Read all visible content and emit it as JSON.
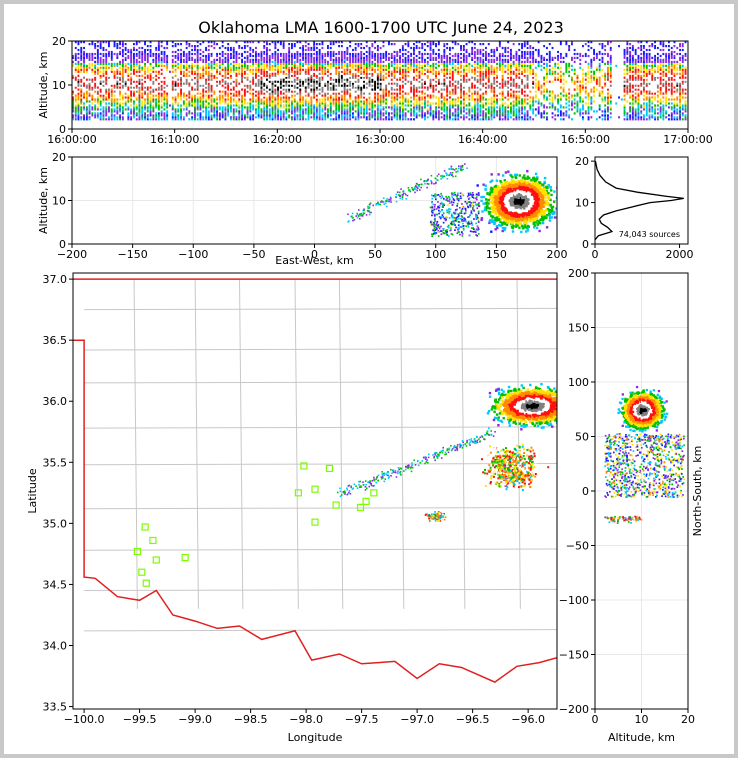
{
  "title": "Oklahoma LMA 1600-1700 UTC June 24, 2023",
  "source_count_label": "74,043 sources",
  "colors": {
    "state_border": "#e02020",
    "county_lines": "#c8c8c8",
    "station_marker": "#7cfc00",
    "density_scale": [
      "#1a1aff",
      "#8a2be2",
      "#00c8ff",
      "#00c000",
      "#ffe000",
      "#ff8c00",
      "#ff1010",
      "#ffffff",
      "#808080",
      "#000000"
    ]
  },
  "chart_data": [
    {
      "id": "time-height",
      "type": "heatmap",
      "xlabel": "",
      "ylabel": "Altitude, km",
      "xticks": [
        "16:00:00",
        "16:10:00",
        "16:20:00",
        "16:30:00",
        "16:40:00",
        "16:50:00",
        "17:00:00"
      ],
      "xlim_minutes_after_1600": [
        0,
        60
      ],
      "ylim": [
        0,
        20
      ],
      "yticks": [
        0,
        10,
        20
      ],
      "density_core_altitude_km": [
        7,
        13
      ]
    },
    {
      "id": "east-west-altitude",
      "type": "heatmap",
      "xlabel": "East-West, km",
      "ylabel": "Altitude, km",
      "xlim": [
        -200,
        200
      ],
      "xticks": [
        -200,
        -150,
        -100,
        -50,
        0,
        50,
        100,
        150,
        200
      ],
      "ylim": [
        0,
        20
      ],
      "yticks": [
        0,
        10,
        20
      ],
      "main_cell": {
        "x_center_km": 168,
        "alt_center_km": 10
      }
    },
    {
      "id": "altitude-histogram",
      "type": "line",
      "xlim": [
        0,
        2200
      ],
      "xticks": [
        0,
        2000
      ],
      "ylim": [
        0,
        21
      ],
      "yticks": [
        0,
        10,
        20
      ],
      "annotation": "74,043 sources",
      "counts_x": [
        0,
        80,
        400,
        300,
        150,
        100,
        200,
        500,
        900,
        1300,
        1800,
        2100,
        1700,
        1000,
        500,
        250,
        120,
        50,
        10
      ],
      "alt_y": [
        1,
        2,
        3,
        4,
        5,
        6,
        7,
        8,
        9,
        10,
        10.5,
        11,
        11.5,
        12.5,
        13.5,
        15,
        16.5,
        18,
        20
      ]
    },
    {
      "id": "plan-view",
      "type": "heatmap",
      "xlabel": "Longitude",
      "ylabel": "Latitude",
      "xlim": [
        -100.1,
        -95.74
      ],
      "xticks": [
        "-100.0",
        "-99.5",
        "-99.0",
        "-98.5",
        "-98.0",
        "-97.5",
        "-97.0",
        "-96.5",
        "-96.0"
      ],
      "ylim": [
        33.48,
        37.05
      ],
      "yticks": [
        "33.5",
        "34.0",
        "34.5",
        "35.0",
        "35.5",
        "36.0",
        "36.5",
        "37.0"
      ],
      "main_cell_center": {
        "lon": -95.97,
        "lat": 35.97
      },
      "stations": [
        {
          "lon": -99.45,
          "lat": 34.97
        },
        {
          "lon": -99.38,
          "lat": 34.86
        },
        {
          "lon": -99.52,
          "lat": 34.77
        },
        {
          "lon": -99.35,
          "lat": 34.7
        },
        {
          "lon": -99.48,
          "lat": 34.6
        },
        {
          "lon": -99.44,
          "lat": 34.51
        },
        {
          "lon": -99.09,
          "lat": 34.72
        },
        {
          "lon": -98.02,
          "lat": 35.47
        },
        {
          "lon": -97.79,
          "lat": 35.45
        },
        {
          "lon": -98.07,
          "lat": 35.25
        },
        {
          "lon": -97.92,
          "lat": 35.28
        },
        {
          "lon": -97.73,
          "lat": 35.15
        },
        {
          "lon": -97.51,
          "lat": 35.13
        },
        {
          "lon": -97.46,
          "lat": 35.18
        },
        {
          "lon": -97.39,
          "lat": 35.25
        },
        {
          "lon": -97.92,
          "lat": 35.01
        }
      ]
    },
    {
      "id": "altitude-north-south",
      "type": "heatmap",
      "xlabel": "Altitude, km",
      "ylabel": "North-South, km",
      "xlim": [
        0,
        20
      ],
      "xticks": [
        0,
        10,
        20
      ],
      "ylim": [
        -200,
        200
      ],
      "yticks": [
        -200,
        -150,
        -100,
        -50,
        0,
        50,
        100,
        150,
        200
      ],
      "main_cell": {
        "alt_center_km": 10,
        "y_center_km": 75
      }
    }
  ]
}
